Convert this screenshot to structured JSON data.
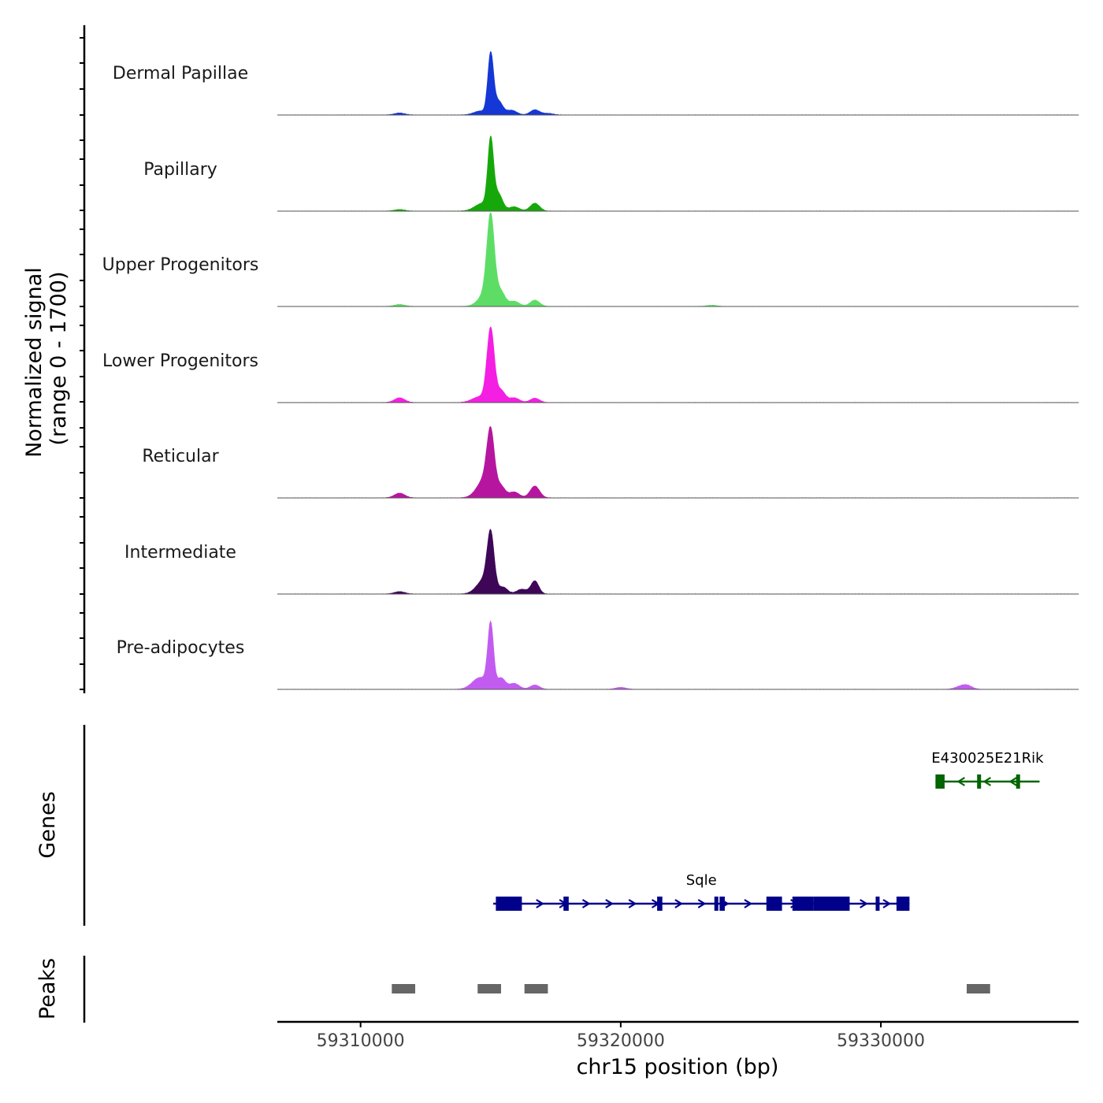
{
  "chart_data": {
    "type": "area",
    "chromosome": "chr15",
    "xlabel": "chr15 position (bp)",
    "xlim": [
      59306800,
      59337600
    ],
    "xticks": [
      59310000,
      59320000,
      59330000
    ],
    "xtick_labels": [
      "59310000",
      "59320000",
      "59330000"
    ],
    "coverage_ylabel_line1": "Normalized signal",
    "coverage_ylabel_line2": "(range 0 - 1700)",
    "ylim": [
      0,
      1700
    ],
    "tracks": [
      {
        "name": "Dermal Papillae",
        "color": "#1437d6",
        "peaks": [
          [
            59311500,
            50,
            200
          ],
          [
            59314600,
            100,
            250
          ],
          [
            59315000,
            1530,
            110
          ],
          [
            59315300,
            350,
            160
          ],
          [
            59315800,
            120,
            200
          ],
          [
            59316700,
            130,
            180
          ],
          [
            59317200,
            40,
            200
          ]
        ]
      },
      {
        "name": "Papillary",
        "color": "#16a80b",
        "peaks": [
          [
            59311500,
            40,
            200
          ],
          [
            59314700,
            200,
            300
          ],
          [
            59315000,
            1720,
            110
          ],
          [
            59315300,
            420,
            160
          ],
          [
            59315900,
            110,
            200
          ],
          [
            59316700,
            200,
            180
          ]
        ]
      },
      {
        "name": "Upper Progenitors",
        "color": "#5edd66",
        "peaks": [
          [
            59311500,
            50,
            200
          ],
          [
            59314900,
            400,
            300
          ],
          [
            59315000,
            2000,
            140
          ],
          [
            59315400,
            300,
            160
          ],
          [
            59315900,
            130,
            200
          ],
          [
            59316700,
            160,
            180
          ],
          [
            59323500,
            30,
            200
          ]
        ]
      },
      {
        "name": "Lower Progenitors",
        "color": "#f41fe3",
        "peaks": [
          [
            59311500,
            120,
            200
          ],
          [
            59314600,
            150,
            300
          ],
          [
            59315000,
            1850,
            140
          ],
          [
            59315400,
            300,
            160
          ],
          [
            59315900,
            120,
            200
          ],
          [
            59316700,
            110,
            180
          ]
        ]
      },
      {
        "name": "Reticular",
        "color": "#b6169f",
        "peaks": [
          [
            59311500,
            120,
            200
          ],
          [
            59314800,
            500,
            300
          ],
          [
            59315000,
            1400,
            140
          ],
          [
            59315400,
            250,
            160
          ],
          [
            59315900,
            150,
            200
          ],
          [
            59316700,
            300,
            180
          ]
        ]
      },
      {
        "name": "Intermediate",
        "color": "#3e0657",
        "peaks": [
          [
            59311500,
            60,
            200
          ],
          [
            59314800,
            400,
            300
          ],
          [
            59315000,
            1320,
            130
          ],
          [
            59315500,
            150,
            160
          ],
          [
            59316200,
            120,
            200
          ],
          [
            59316700,
            330,
            150
          ]
        ]
      },
      {
        "name": "Pre-adipocytes",
        "color": "#c25cf0",
        "peaks": [
          [
            59314600,
            300,
            300
          ],
          [
            59315000,
            1600,
            110
          ],
          [
            59315400,
            280,
            160
          ],
          [
            59315900,
            150,
            200
          ],
          [
            59316700,
            110,
            180
          ],
          [
            59320000,
            50,
            200
          ],
          [
            59333000,
            50,
            200
          ],
          [
            59333300,
            100,
            200
          ]
        ]
      }
    ],
    "genes_ylabel": "Genes",
    "genes": [
      {
        "name": "E430025E21Rik",
        "color": "#006400",
        "start": 59332100,
        "end": 59336100,
        "strand": "-",
        "exons": [
          [
            59332100,
            59332450
          ],
          [
            59333700,
            59333800
          ],
          [
            59335200,
            59335300
          ]
        ]
      },
      {
        "name": "Sqle",
        "color": "#00008b",
        "start": 59315100,
        "end": 59331100,
        "strand": "+",
        "exons": [
          [
            59315200,
            59316200
          ],
          [
            59317800,
            59318000
          ],
          [
            59321400,
            59321600
          ],
          [
            59323600,
            59323700
          ],
          [
            59323800,
            59324000
          ],
          [
            59325600,
            59326200
          ],
          [
            59326600,
            59327400
          ],
          [
            59327400,
            59328800
          ],
          [
            59329800,
            59329900
          ],
          [
            59330600,
            59331100
          ]
        ]
      }
    ],
    "peaks_ylabel": "Peaks",
    "peak_regions": [
      [
        59311200,
        59312100
      ],
      [
        59314500,
        59315400
      ],
      [
        59316300,
        59317200
      ],
      [
        59333300,
        59334200
      ]
    ]
  }
}
